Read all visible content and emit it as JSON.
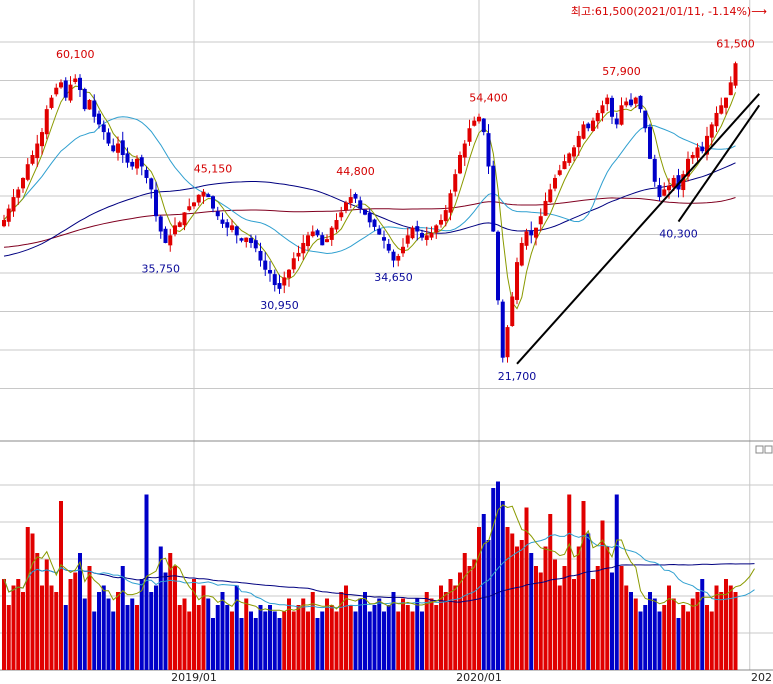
{
  "chart_data": [
    {
      "type": "candlestick",
      "title": "",
      "price_markers": {
        "high_note": "최고:61,500(2021/01/11, -1.14%)⟶",
        "labels": [
          {
            "text": "60,100",
            "kind": "high",
            "bar": 15
          },
          {
            "text": "45,150",
            "kind": "high",
            "bar": 44
          },
          {
            "text": "44,800",
            "kind": "high",
            "bar": 74
          },
          {
            "text": "54,400",
            "kind": "high",
            "bar": 102
          },
          {
            "text": "57,900",
            "kind": "high",
            "bar": 130
          },
          {
            "text": "61,500",
            "kind": "high",
            "bar": 158
          },
          {
            "text": "35,750",
            "kind": "low",
            "bar": 33
          },
          {
            "text": "30,950",
            "kind": "low",
            "bar": 58
          },
          {
            "text": "34,650",
            "kind": "low",
            "bar": 82
          },
          {
            "text": "21,700",
            "kind": "low",
            "bar": 108
          },
          {
            "text": "40,300",
            "kind": "low",
            "bar": 142
          }
        ]
      },
      "x_ticks": [
        {
          "label": "2019/01",
          "bar": 40
        },
        {
          "label": "2020/01",
          "bar": 100
        },
        {
          "label": "202",
          "bar": 157
        }
      ],
      "ylim": [
        12000,
        66000
      ],
      "colors": {
        "up": "#e00000",
        "down": "#0000c8",
        "ma5": "#8a9a00",
        "ma20": "#30a0d0",
        "ma60": "#000080",
        "ma120": "#800020",
        "trend": "#000000",
        "grid": "#c8c8c8"
      },
      "trend_lines": [
        {
          "from_bar": 108,
          "from_value": 21700,
          "to_bar": 159,
          "to_value": 57000
        },
        {
          "from_bar": 142,
          "from_value": 40300,
          "to_bar": 159,
          "to_value": 55500
        }
      ],
      "ohlc_closes": [
        40500,
        42000,
        43500,
        44500,
        46000,
        47800,
        49000,
        50500,
        52000,
        55000,
        56500,
        57800,
        58500,
        56500,
        58200,
        59000,
        57500,
        55000,
        56200,
        54000,
        53000,
        52000,
        50500,
        49500,
        50500,
        49000,
        48000,
        47500,
        48500,
        47500,
        46000,
        44500,
        41000,
        39000,
        37500,
        38500,
        39800,
        40200,
        41500,
        42300,
        42800,
        43800,
        44200,
        43500,
        42000,
        41000,
        40000,
        39500,
        39800,
        38500,
        37800,
        38200,
        37500,
        36800,
        35200,
        34000,
        33500,
        32000,
        31500,
        33000,
        34000,
        35500,
        36200,
        37500,
        38500,
        39000,
        38500,
        37200,
        38000,
        39500,
        40500,
        41500,
        42800,
        43500,
        43300,
        42000,
        41200,
        40200,
        39600,
        38600,
        37800,
        36500,
        35200,
        35800,
        37000,
        38500,
        39500,
        39000,
        38200,
        38500,
        38800,
        39800,
        40500,
        41800,
        44000,
        46500,
        49000,
        50500,
        52500,
        53500,
        54000,
        52000,
        47500,
        39000,
        30000,
        22500,
        26500,
        30500,
        35000,
        37500,
        39000,
        38500,
        39500,
        41000,
        43000,
        44500,
        46000,
        47000,
        48200,
        49200,
        50000,
        51500,
        53000,
        52500,
        53500,
        54500,
        55500,
        56500,
        54000,
        53000,
        55500,
        56000,
        55500,
        56500,
        55000,
        52500,
        48500,
        45500,
        43500,
        44500,
        45000,
        46000,
        44500,
        46500,
        48500,
        49000,
        50000,
        49500,
        51500,
        53000,
        54500,
        55500,
        56500,
        58500,
        61000
      ]
    },
    {
      "type": "bar",
      "title": "",
      "note": "volume",
      "volume": [
        14,
        10,
        13,
        14,
        12,
        22,
        21,
        18,
        13,
        17,
        13,
        12,
        26,
        10,
        14,
        15,
        18,
        11,
        16,
        9,
        12,
        13,
        11,
        9,
        12,
        16,
        10,
        11,
        10,
        14,
        27,
        12,
        13,
        19,
        15,
        18,
        16,
        10,
        11,
        9,
        14,
        10,
        13,
        11,
        8,
        10,
        12,
        10,
        9,
        13,
        8,
        11,
        9,
        8,
        10,
        9,
        10,
        9,
        8,
        9,
        11,
        9,
        10,
        11,
        9,
        12,
        8,
        9,
        11,
        10,
        9,
        12,
        13,
        10,
        9,
        11,
        12,
        9,
        10,
        11,
        9,
        10,
        12,
        9,
        11,
        10,
        9,
        11,
        9,
        12,
        11,
        10,
        13,
        12,
        14,
        13,
        15,
        18,
        16,
        17,
        22,
        24,
        20,
        28,
        29,
        26,
        22,
        21,
        19,
        20,
        25,
        18,
        16,
        15,
        19,
        24,
        17,
        13,
        16,
        27,
        14,
        19,
        26,
        21,
        14,
        16,
        23,
        19,
        15,
        27,
        16,
        13,
        12,
        11,
        9,
        10,
        12,
        11,
        9,
        10,
        13,
        11,
        8,
        10,
        9,
        11,
        12,
        14,
        10,
        9,
        13,
        12,
        14,
        13,
        12,
        14,
        15,
        18,
        19
      ]
    }
  ]
}
